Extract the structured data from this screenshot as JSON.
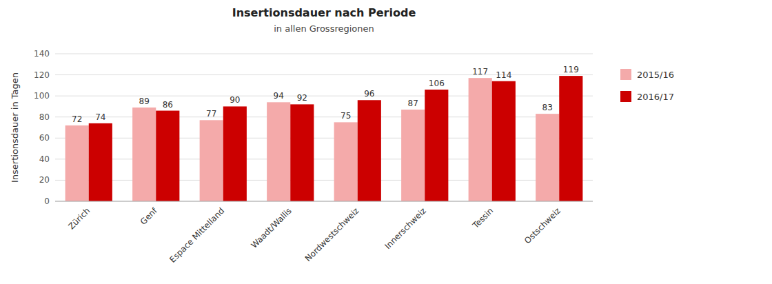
{
  "chart_data": {
    "type": "bar",
    "title": "Insertionsdauer nach Periode",
    "subtitle": "in allen Grossregionen",
    "ylabel": "Insertionsdauer in Tagen",
    "categories": [
      "Zürich",
      "Genf",
      "Espace Mittelland",
      "Waadt/Wallis",
      "Nordwestschweiz",
      "Innerschweiz",
      "Tessin",
      "Ostschweiz"
    ],
    "series": [
      {
        "name": "2015/16",
        "color": "#F4AAAA",
        "values": [
          72,
          89,
          77,
          94,
          75,
          87,
          117,
          83
        ]
      },
      {
        "name": "2016/17",
        "color": "#CC0000",
        "values": [
          74,
          86,
          90,
          92,
          96,
          106,
          114,
          119
        ]
      }
    ],
    "ylim": [
      0,
      140
    ],
    "yticks": [
      0,
      20,
      40,
      60,
      80,
      100,
      120,
      140
    ],
    "grid": true,
    "legend": "right",
    "data_labels": true
  }
}
